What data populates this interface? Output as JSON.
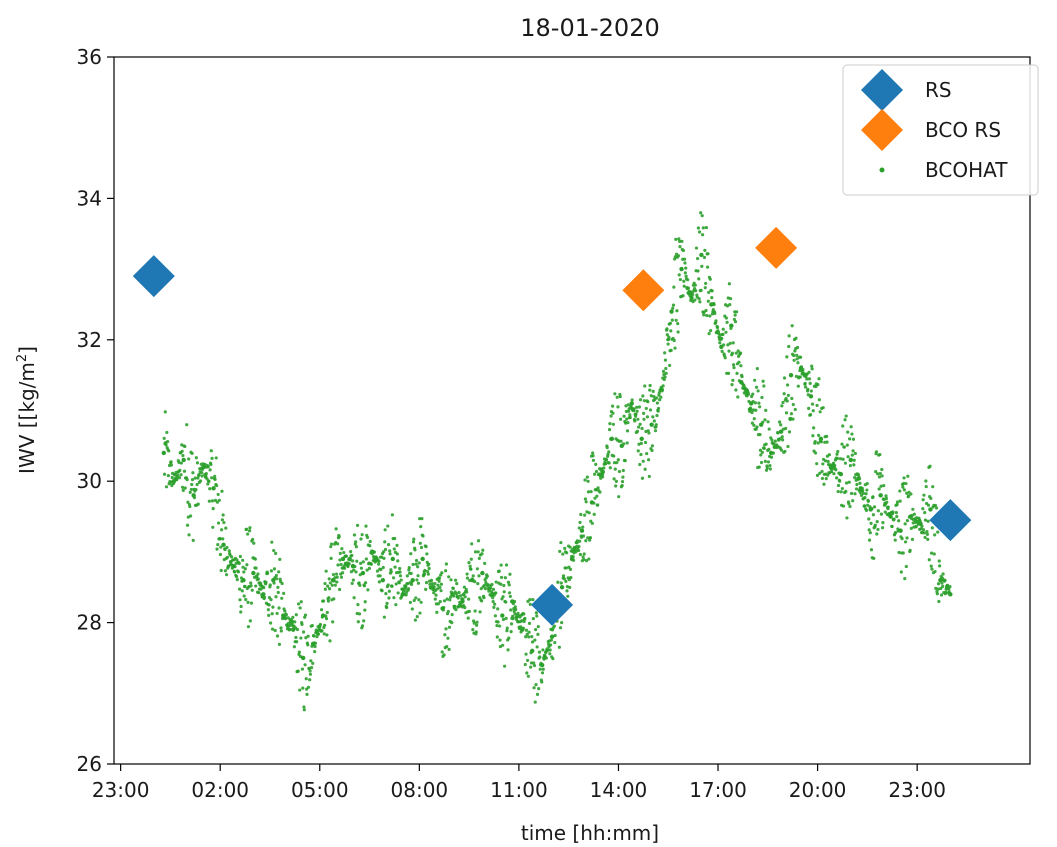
{
  "chart_data": {
    "type": "scatter",
    "title": "18-01-2020",
    "xlabel": "time [hh:mm]",
    "ylabel_prefix": "IWV [[kg/m",
    "ylabel_sup": "2",
    "ylabel_suffix": "]",
    "x_unit": "hours relative to 18-01-2020 00:00",
    "xlim": [
      -1.2,
      26.4
    ],
    "ylim": [
      26,
      36
    ],
    "xticks": [
      {
        "x": -1,
        "label": "23:00"
      },
      {
        "x": 2,
        "label": "02:00"
      },
      {
        "x": 5,
        "label": "05:00"
      },
      {
        "x": 8,
        "label": "08:00"
      },
      {
        "x": 11,
        "label": "11:00"
      },
      {
        "x": 14,
        "label": "14:00"
      },
      {
        "x": 17,
        "label": "17:00"
      },
      {
        "x": 20,
        "label": "20:00"
      },
      {
        "x": 23,
        "label": "23:00"
      }
    ],
    "yticks": [
      {
        "y": 26,
        "label": "26"
      },
      {
        "y": 28,
        "label": "28"
      },
      {
        "y": 30,
        "label": "30"
      },
      {
        "y": 32,
        "label": "32"
      },
      {
        "y": 34,
        "label": "34"
      },
      {
        "y": 36,
        "label": "36"
      }
    ],
    "grid": false,
    "legend_position": "top-right",
    "series": [
      {
        "name": "RS",
        "color": "#1f77b4",
        "marker": "diamond",
        "points": [
          [
            0.0,
            32.9
          ],
          [
            12.0,
            28.25
          ],
          [
            24.0,
            29.45
          ]
        ]
      },
      {
        "name": "BCO RS",
        "color": "#ff7f0e",
        "marker": "diamond",
        "points": [
          [
            14.75,
            32.7
          ],
          [
            18.75,
            33.3
          ]
        ]
      },
      {
        "name": "BCOHAT",
        "color": "#2ca02c",
        "marker": "dot",
        "points": [
          [
            0.3,
            30.4
          ],
          [
            0.6,
            30.0
          ],
          [
            0.9,
            30.3
          ],
          [
            1.2,
            29.8
          ],
          [
            1.5,
            30.2
          ],
          [
            1.8,
            29.9
          ],
          [
            2.1,
            29.1
          ],
          [
            2.4,
            28.8
          ],
          [
            2.7,
            28.6
          ],
          [
            3.0,
            28.7
          ],
          [
            3.3,
            28.4
          ],
          [
            3.6,
            28.6
          ],
          [
            3.9,
            28.1
          ],
          [
            4.2,
            27.9
          ],
          [
            4.5,
            27.5
          ],
          [
            4.8,
            27.7
          ],
          [
            5.1,
            28.1
          ],
          [
            5.4,
            28.6
          ],
          [
            5.7,
            28.9
          ],
          [
            6.0,
            28.8
          ],
          [
            6.3,
            28.7
          ],
          [
            6.6,
            29.0
          ],
          [
            6.9,
            28.6
          ],
          [
            7.2,
            28.9
          ],
          [
            7.5,
            28.4
          ],
          [
            7.8,
            28.6
          ],
          [
            8.1,
            28.9
          ],
          [
            8.4,
            28.5
          ],
          [
            8.7,
            28.2
          ],
          [
            9.0,
            28.4
          ],
          [
            9.3,
            28.3
          ],
          [
            9.6,
            28.6
          ],
          [
            9.9,
            28.7
          ],
          [
            10.2,
            28.4
          ],
          [
            10.5,
            28.1
          ],
          [
            10.8,
            28.3
          ],
          [
            11.1,
            27.9
          ],
          [
            11.4,
            27.6
          ],
          [
            11.7,
            27.4
          ],
          [
            12.0,
            27.8
          ],
          [
            12.3,
            28.5
          ],
          [
            12.6,
            28.9
          ],
          [
            12.9,
            29.3
          ],
          [
            13.2,
            29.7
          ],
          [
            13.5,
            30.1
          ],
          [
            13.8,
            30.6
          ],
          [
            14.1,
            30.5
          ],
          [
            14.4,
            31.1
          ],
          [
            14.7,
            30.6
          ],
          [
            15.0,
            30.8
          ],
          [
            15.3,
            31.3
          ],
          [
            15.6,
            32.4
          ],
          [
            15.9,
            33.0
          ],
          [
            16.2,
            32.6
          ],
          [
            16.5,
            33.2
          ],
          [
            16.8,
            32.5
          ],
          [
            17.1,
            31.9
          ],
          [
            17.4,
            32.2
          ],
          [
            17.7,
            31.4
          ],
          [
            18.0,
            31.1
          ],
          [
            18.3,
            30.8
          ],
          [
            18.6,
            30.4
          ],
          [
            18.9,
            30.7
          ],
          [
            19.2,
            31.5
          ],
          [
            19.5,
            31.6
          ],
          [
            19.8,
            31.2
          ],
          [
            20.1,
            30.6
          ],
          [
            20.4,
            30.2
          ],
          [
            20.7,
            30.1
          ],
          [
            21.0,
            30.3
          ],
          [
            21.3,
            29.9
          ],
          [
            21.6,
            29.6
          ],
          [
            21.9,
            29.8
          ],
          [
            22.2,
            29.5
          ],
          [
            22.5,
            29.3
          ],
          [
            22.8,
            29.5
          ],
          [
            23.1,
            29.4
          ],
          [
            23.4,
            29.6
          ],
          [
            23.7,
            28.6
          ],
          [
            24.0,
            28.4
          ]
        ]
      }
    ]
  }
}
